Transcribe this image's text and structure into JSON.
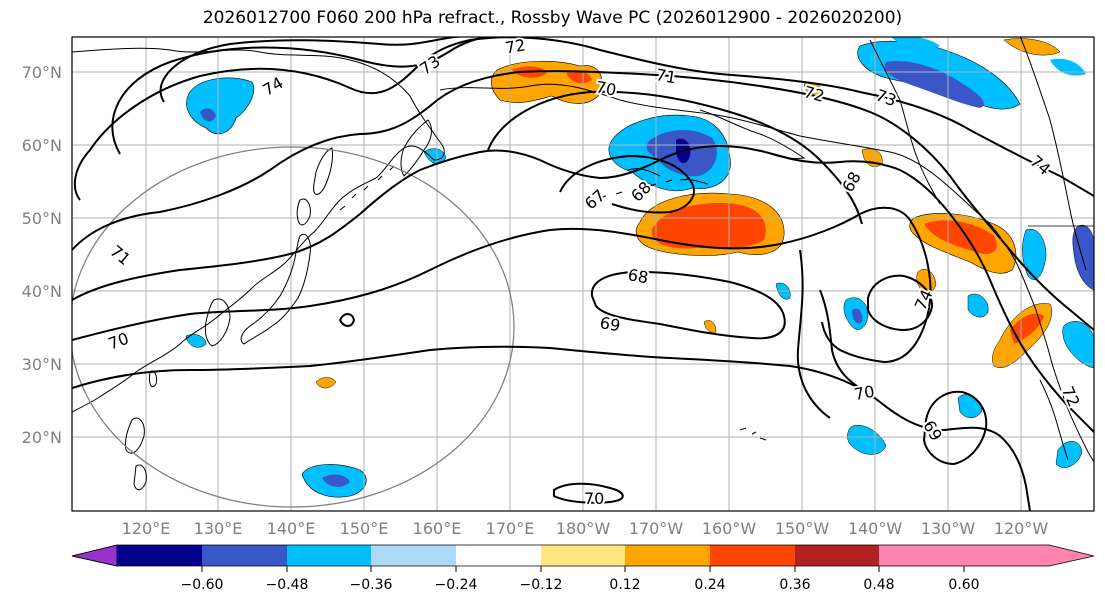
{
  "title": "2026012700 F060 200 hPa refract., Rossby Wave PC (2026012900 - 2026020200)",
  "lat_labels": [
    "70°N",
    "60°N",
    "50°N",
    "40°N",
    "30°N",
    "20°N"
  ],
  "lon_labels": [
    "120°E",
    "130°E",
    "140°E",
    "150°E",
    "160°E",
    "170°E",
    "180°W",
    "170°W",
    "160°W",
    "150°W",
    "140°W",
    "130°W",
    "120°W"
  ],
  "colorbar": {
    "ticks": [
      "−0.60",
      "−0.48",
      "−0.36",
      "−0.24",
      "−0.12",
      "0.12",
      "0.24",
      "0.36",
      "0.48",
      "0.60"
    ],
    "colors": [
      "#9932cc",
      "#00008b",
      "#3a57c8",
      "#00bfff",
      "#add8f6",
      "#ffffff",
      "#ffe680",
      "#ffa500",
      "#ff4500",
      "#b22222",
      "#ff85b0"
    ]
  },
  "contour_labels": [
    "74",
    "73",
    "72",
    "71",
    "70",
    "72",
    "73",
    "74",
    "67",
    "68",
    "68",
    "68",
    "69",
    "71",
    "70",
    "70",
    "74",
    "69",
    "72",
    "70"
  ]
}
